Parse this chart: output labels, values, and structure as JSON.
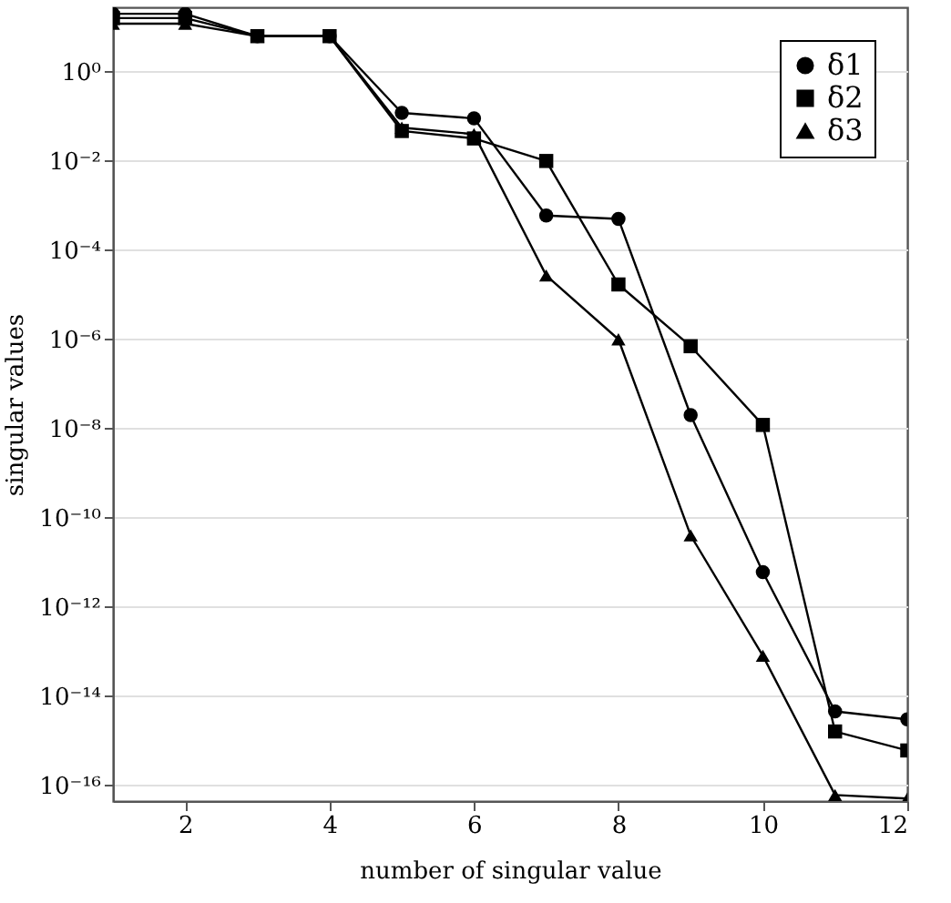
{
  "chart_data": {
    "type": "line",
    "xlabel": "number of singular value",
    "ylabel": "singular values",
    "x": [
      1,
      2,
      3,
      4,
      5,
      6,
      7,
      8,
      9,
      10,
      11,
      12
    ],
    "series": [
      {
        "name": "δ1",
        "color": "#000000",
        "marker": "circle",
        "values": [
          20,
          20,
          6.3,
          6.3,
          0.12,
          0.09,
          0.0006,
          0.0005,
          2e-08,
          6e-12,
          4.5e-15,
          3e-15
        ]
      },
      {
        "name": "δ2",
        "color": "#000000",
        "marker": "square",
        "values": [
          16,
          16,
          6.3,
          6.3,
          0.047,
          0.032,
          0.01,
          1.7e-05,
          7e-07,
          1.2e-08,
          1.6e-15,
          6e-16
        ]
      },
      {
        "name": "δ3",
        "color": "#000000",
        "marker": "triangle",
        "values": [
          12,
          12,
          6.3,
          6.3,
          0.056,
          0.04,
          2.7e-05,
          1e-06,
          4e-11,
          8e-14,
          6e-17,
          5e-17
        ]
      }
    ],
    "log": "y",
    "xlim": [
      1,
      12
    ],
    "xticks": [
      2,
      4,
      6,
      8,
      10,
      12
    ],
    "ylim": [
      4.4e-17,
      28
    ],
    "yticks": [
      {
        "value": 1,
        "label": "10⁰"
      },
      {
        "value": 0.01,
        "label": "10⁻²"
      },
      {
        "value": 0.0001,
        "label": "10⁻⁴"
      },
      {
        "value": 1e-06,
        "label": "10⁻⁶"
      },
      {
        "value": 1e-08,
        "label": "10⁻⁸"
      },
      {
        "value": 1e-10,
        "label": "10⁻¹⁰"
      },
      {
        "value": 1e-12,
        "label": "10⁻¹²"
      },
      {
        "value": 1e-14,
        "label": "10⁻¹⁴"
      },
      {
        "value": 1e-16,
        "label": "10⁻¹⁶"
      }
    ],
    "grid": "y",
    "legend": "top right",
    "line_style": "solid"
  }
}
